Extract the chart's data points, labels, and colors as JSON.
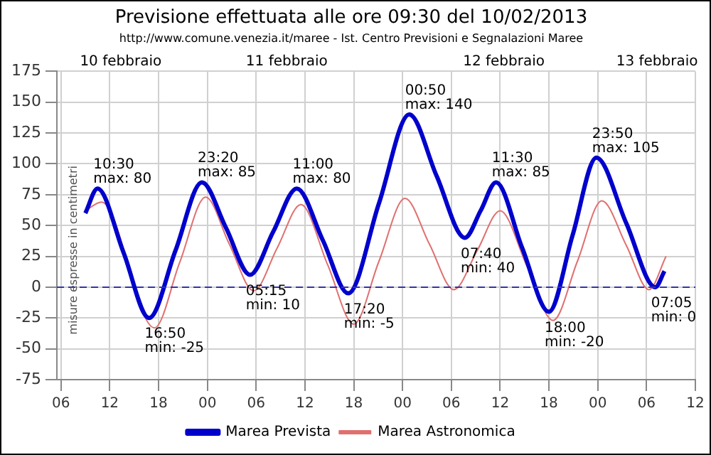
{
  "chart_data": {
    "type": "line",
    "title": "Previsione effettuata alle ore 09:30 del 10/02/2013",
    "subtitle": "http://www.comune.venezia.it/maree - Ist. Centro Previsioni e Segnalazioni Maree",
    "ylabel": "misure espresse in centimetri",
    "xlim": [
      5.5,
      84
    ],
    "ylim": [
      -75,
      175
    ],
    "xticks": [
      {
        "value": 6,
        "label": "06"
      },
      {
        "value": 12,
        "label": "12"
      },
      {
        "value": 18,
        "label": "18"
      },
      {
        "value": 24,
        "label": "00"
      },
      {
        "value": 30,
        "label": "06"
      },
      {
        "value": 36,
        "label": "12"
      },
      {
        "value": 42,
        "label": "18"
      },
      {
        "value": 48,
        "label": "00"
      },
      {
        "value": 54,
        "label": "06"
      },
      {
        "value": 60,
        "label": "12"
      },
      {
        "value": 66,
        "label": "18"
      },
      {
        "value": 72,
        "label": "00"
      },
      {
        "value": 78,
        "label": "06"
      },
      {
        "value": 84,
        "label": "12"
      }
    ],
    "yticks": [
      -75,
      -50,
      -25,
      0,
      25,
      50,
      75,
      100,
      125,
      150,
      175
    ],
    "grid": true,
    "legend": "bottom",
    "marker": "none",
    "line_style": "solid",
    "ref_lines": [
      {
        "axis": "y",
        "value": 0,
        "color": "#3333aa",
        "line_style": "dashed"
      }
    ],
    "series": [
      {
        "name": "Marea Prevista",
        "color": "#0000cc",
        "x": [
          9,
          10.5,
          13.7,
          16.83,
          20.1,
          23.33,
          26.3,
          29.25,
          32.1,
          35,
          38.2,
          41.33,
          45.1,
          48.83,
          52.2,
          55.67,
          57.6,
          59.5,
          62.7,
          66,
          68.9,
          71.83,
          75.5,
          79.08,
          80.2
        ],
        "values": [
          60,
          80,
          28,
          -25,
          30,
          85,
          48,
          10,
          45,
          80,
          38,
          -5,
          68,
          140,
          90,
          40,
          62,
          85,
          32,
          -20,
          42,
          105,
          52,
          0,
          13
        ]
      },
      {
        "name": "Marea Astronomica",
        "color": "#e07070",
        "x": [
          9,
          11,
          17.5,
          20.6,
          23.8,
          26.7,
          29.7,
          32.6,
          35.5,
          38.8,
          42,
          45.1,
          48.3,
          51.3,
          54.3,
          57.2,
          60,
          63.3,
          66.5,
          69.5,
          72.5,
          75.5,
          78.3,
          80.4
        ],
        "values": [
          62,
          69,
          -33,
          20,
          73,
          35,
          -3,
          32,
          67,
          18,
          -30,
          21,
          72,
          35,
          -2,
          30,
          62,
          17,
          -27,
          21,
          70,
          34,
          -2,
          25
        ]
      }
    ],
    "annotations": [
      "10 febbraio",
      "11 febbraio",
      "12 febbraio",
      "13 febbraio",
      {
        "text": "10:30\nmax: 80",
        "x": 10.5,
        "y": 80
      },
      {
        "text": "16:50\nmin: -25",
        "x": 16.83,
        "y": -25
      },
      {
        "text": "23:20\nmax: 85",
        "x": 23.33,
        "y": 85
      },
      {
        "text": "05:15\nmin: 10",
        "x": 29.25,
        "y": 10
      },
      {
        "text": "11:00\nmax: 80",
        "x": 35,
        "y": 80
      },
      {
        "text": "17:20\nmin: -5",
        "x": 41.33,
        "y": -5
      },
      {
        "text": "00:50\nmax: 140",
        "x": 48.83,
        "y": 140
      },
      {
        "text": "07:40\nmin: 40",
        "x": 55.67,
        "y": 40
      },
      {
        "text": "11:30\nmax: 85",
        "x": 59.5,
        "y": 85
      },
      {
        "text": "18:00\nmin: -20",
        "x": 66,
        "y": -20
      },
      {
        "text": "23:50\nmax: 105",
        "x": 71.83,
        "y": 105
      },
      {
        "text": "07:05\nmin: 0",
        "x": 79.08,
        "y": 0
      }
    ]
  }
}
